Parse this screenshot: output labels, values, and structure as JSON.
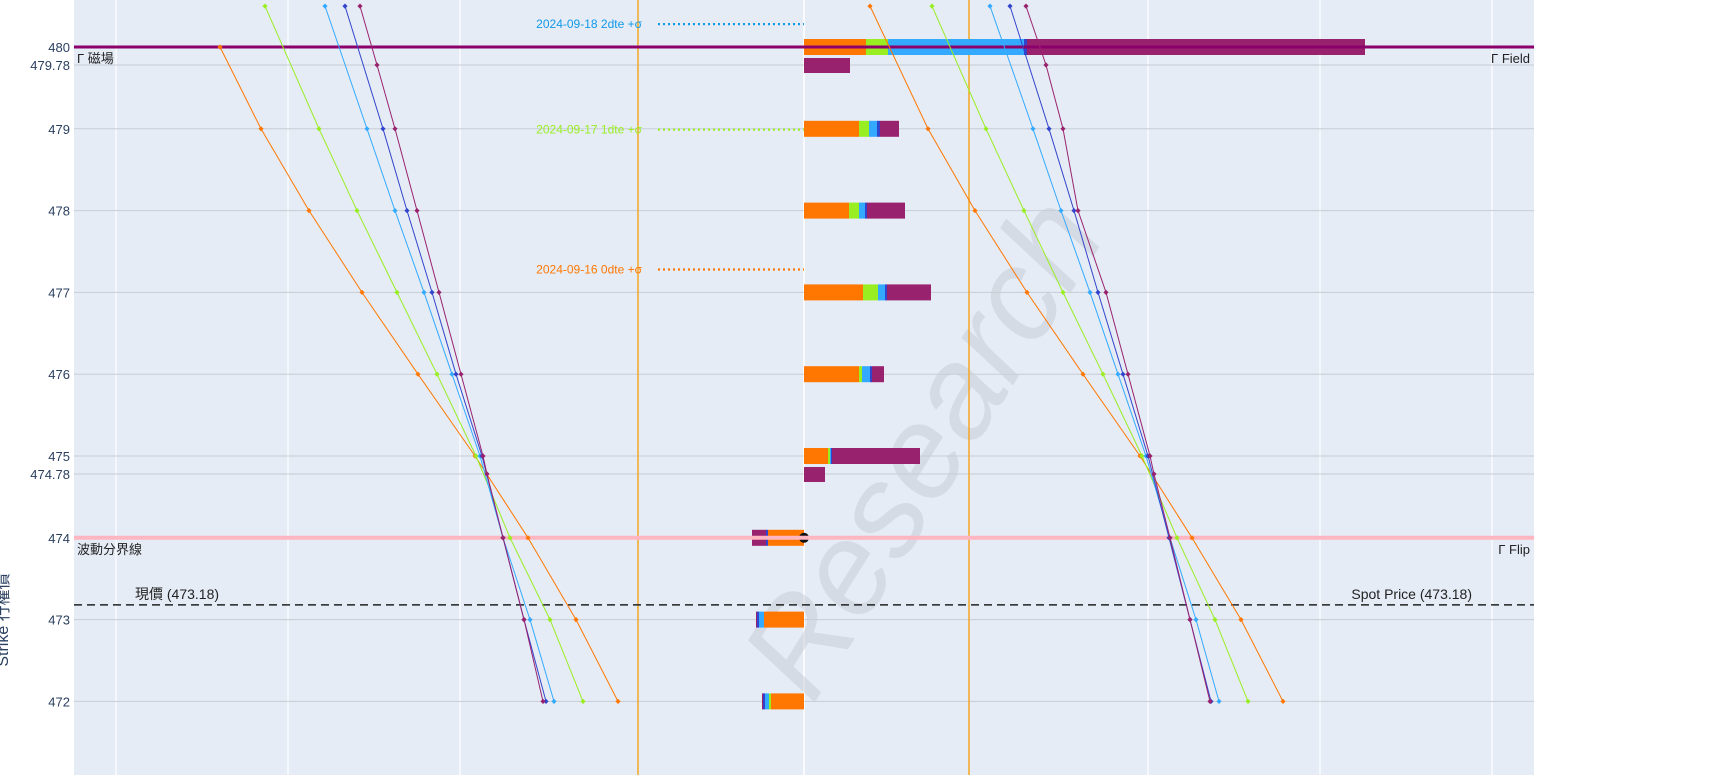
{
  "chart_data": {
    "type": "line",
    "yaxis": {
      "title": "Strike 行權價",
      "range": [
        471.95,
        480.6
      ],
      "ticks": [
        472,
        473,
        474,
        474.78,
        475,
        476,
        477,
        478,
        479,
        479.78,
        480
      ],
      "tick_labels": [
        "472",
        "473",
        "474",
        "474.78",
        "475",
        "476",
        "477",
        "478",
        "479",
        "479.78",
        "480"
      ]
    },
    "reference_lines": {
      "gamma_field": {
        "strike": 480,
        "label_left": "Γ 磁場",
        "label_right": "Γ Field",
        "color": "#8B006B"
      },
      "gamma_flip": {
        "strike": 474,
        "label_left": "波動分界線",
        "label_right": "Γ Flip",
        "color": "#FFB6C1"
      },
      "spot_price": {
        "strike": 473.18,
        "label_left": "現價 (473.18)",
        "label_right": "Spot Price (473.18)",
        "color": "#222222"
      },
      "sigma_levels": [
        {
          "label": "2024-09-18 2dte +σ",
          "strike": 480.28,
          "color": "#1199E8"
        },
        {
          "label": "2024-09-17 1dte +σ",
          "strike": 478.99,
          "color": "#99EE22"
        },
        {
          "label": "2024-09-16 0dte +σ",
          "strike": 477.28,
          "color": "#FF7700"
        }
      ]
    },
    "series": [
      {
        "key": "0dte",
        "color": "#FF7700"
      },
      {
        "key": "1dte",
        "color": "#99EE22"
      },
      {
        "key": "2dte",
        "color": "#33AAFF"
      },
      {
        "key": "3dte",
        "color": "#3344CC"
      },
      {
        "key": "4dte",
        "color": "#99226E"
      }
    ],
    "curves_left": [
      {
        "series": 0,
        "points": [
          [
            220,
            480
          ],
          [
            261,
            479
          ],
          [
            309,
            478
          ],
          [
            362,
            477
          ],
          [
            418,
            476
          ],
          [
            475,
            475
          ],
          [
            528,
            474
          ],
          [
            576,
            473
          ],
          [
            618,
            472
          ]
        ]
      },
      {
        "series": 1,
        "points": [
          [
            265,
            480.5
          ],
          [
            319,
            479
          ],
          [
            357,
            478
          ],
          [
            397,
            477
          ],
          [
            437,
            476
          ],
          [
            476,
            475
          ],
          [
            510,
            474
          ],
          [
            550,
            473
          ],
          [
            583,
            472
          ]
        ]
      },
      {
        "series": 2,
        "points": [
          [
            325,
            480.5
          ],
          [
            367,
            479
          ],
          [
            395,
            478
          ],
          [
            424,
            477
          ],
          [
            452,
            476
          ],
          [
            480,
            475
          ],
          [
            503,
            474
          ],
          [
            530,
            473
          ],
          [
            554,
            472
          ]
        ]
      },
      {
        "series": 3,
        "points": [
          [
            345,
            480.5
          ],
          [
            383,
            479
          ],
          [
            407,
            478
          ],
          [
            432,
            477
          ],
          [
            456,
            476
          ],
          [
            482,
            475
          ],
          [
            503,
            474
          ],
          [
            524,
            473
          ],
          [
            546,
            472
          ]
        ]
      },
      {
        "series": 4,
        "points": [
          [
            360,
            480.5
          ],
          [
            377,
            479.78
          ],
          [
            395,
            479
          ],
          [
            417,
            478
          ],
          [
            439,
            477
          ],
          [
            461,
            476
          ],
          [
            483,
            475
          ],
          [
            487,
            474.78
          ],
          [
            503,
            474
          ],
          [
            524,
            473
          ],
          [
            543,
            472
          ]
        ]
      }
    ],
    "curves_right": [
      {
        "series": 0,
        "points": [
          [
            870,
            480.5
          ],
          [
            928,
            479
          ],
          [
            975,
            478
          ],
          [
            1027,
            477
          ],
          [
            1083,
            476
          ],
          [
            1140,
            475
          ],
          [
            1192,
            474
          ],
          [
            1241,
            473
          ],
          [
            1283,
            472
          ]
        ]
      },
      {
        "series": 1,
        "points": [
          [
            932,
            480.5
          ],
          [
            986,
            479
          ],
          [
            1024,
            478
          ],
          [
            1063,
            477
          ],
          [
            1103,
            476
          ],
          [
            1142,
            475
          ],
          [
            1177,
            474
          ],
          [
            1215,
            473
          ],
          [
            1248,
            472
          ]
        ]
      },
      {
        "series": 2,
        "points": [
          [
            990,
            480.5
          ],
          [
            1033,
            479
          ],
          [
            1061,
            478
          ],
          [
            1090,
            477
          ],
          [
            1118,
            476
          ],
          [
            1146,
            475
          ],
          [
            1170,
            474
          ],
          [
            1196,
            473
          ],
          [
            1219,
            472
          ]
        ]
      },
      {
        "series": 3,
        "points": [
          [
            1010,
            480.5
          ],
          [
            1049,
            479
          ],
          [
            1074,
            478
          ],
          [
            1098,
            477
          ],
          [
            1123,
            476
          ],
          [
            1148,
            475
          ],
          [
            1169,
            474
          ],
          [
            1190,
            473
          ],
          [
            1211,
            472
          ]
        ]
      },
      {
        "series": 4,
        "points": [
          [
            1026,
            480.5
          ],
          [
            1046,
            479.78
          ],
          [
            1063,
            479
          ],
          [
            1078,
            478
          ],
          [
            1106,
            477
          ],
          [
            1128,
            476
          ],
          [
            1150,
            475
          ],
          [
            1154,
            474.78
          ],
          [
            1170,
            474
          ],
          [
            1190,
            473
          ],
          [
            1210,
            472
          ]
        ]
      }
    ],
    "bars_right": [
      {
        "strike": 480,
        "widths": [
          62,
          22,
          136,
          3,
          338
        ]
      },
      {
        "strike": 479.78,
        "widths": [
          0,
          0,
          0,
          0,
          46
        ]
      },
      {
        "strike": 479,
        "widths": [
          55,
          10,
          8,
          3,
          19
        ]
      },
      {
        "strike": 478,
        "widths": [
          45,
          10,
          6,
          2,
          38
        ]
      },
      {
        "strike": 477,
        "widths": [
          59,
          15,
          7,
          2,
          44
        ]
      },
      {
        "strike": 476,
        "widths": [
          55,
          3,
          8,
          2,
          12
        ]
      },
      {
        "strike": 475,
        "widths": [
          24,
          2,
          1,
          1,
          88
        ]
      },
      {
        "strike": 474.78,
        "widths": [
          0,
          0,
          0,
          0,
          21
        ]
      }
    ],
    "bars_left": [
      {
        "strike": 474,
        "widths": [
          36,
          0,
          0,
          2,
          14
        ]
      },
      {
        "strike": 473,
        "widths": [
          40,
          0,
          5,
          2,
          1
        ]
      },
      {
        "strike": 472,
        "widths": [
          33,
          2,
          4,
          2,
          1
        ]
      }
    ],
    "orange_vlines_x": [
      638,
      969
    ],
    "watermark": "Research"
  }
}
